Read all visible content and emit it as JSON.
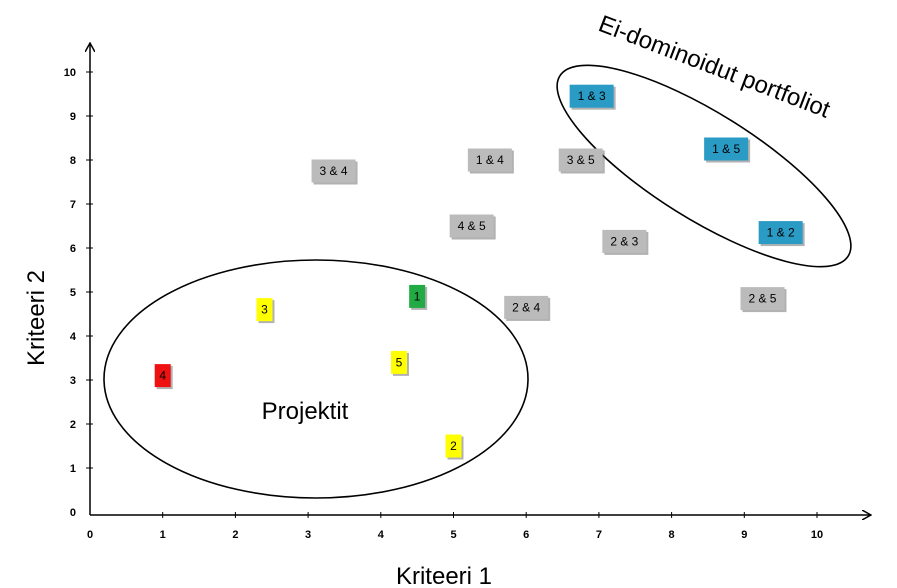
{
  "chart_data": {
    "type": "scatter",
    "xlabel": "Kriteeri 1",
    "ylabel": "Kriteeri 2",
    "xlim": [
      0,
      10
    ],
    "ylim": [
      0,
      10
    ],
    "x_ticks": [
      "0",
      "1",
      "2",
      "3",
      "4",
      "5",
      "6",
      "7",
      "8",
      "9",
      "10"
    ],
    "y_ticks": [
      "0",
      "1",
      "2",
      "3",
      "4",
      "5",
      "6",
      "7",
      "8",
      "9",
      "10"
    ],
    "grid": false,
    "points": [
      {
        "label": "4",
        "x": 1.0,
        "y": 3.1,
        "color": "#ee1111"
      },
      {
        "label": "3",
        "x": 2.4,
        "y": 4.6,
        "color": "#ffff00"
      },
      {
        "label": "5",
        "x": 4.25,
        "y": 3.4,
        "color": "#ffff00"
      },
      {
        "label": "2",
        "x": 5.0,
        "y": 1.5,
        "color": "#ffff00"
      },
      {
        "label": "1",
        "x": 4.5,
        "y": 4.9,
        "color": "#22aa44"
      },
      {
        "label": "2 & 4",
        "x": 6.0,
        "y": 4.65,
        "color": "#bbbbbb"
      },
      {
        "label": "3 & 4",
        "x": 3.35,
        "y": 7.75,
        "color": "#bbbbbb"
      },
      {
        "label": "4 & 5",
        "x": 5.25,
        "y": 6.5,
        "color": "#bbbbbb"
      },
      {
        "label": "1 & 4",
        "x": 5.5,
        "y": 8.0,
        "color": "#bbbbbb"
      },
      {
        "label": "3 & 5",
        "x": 6.75,
        "y": 8.0,
        "color": "#bbbbbb"
      },
      {
        "label": "2 & 3",
        "x": 7.35,
        "y": 6.15,
        "color": "#bbbbbb"
      },
      {
        "label": "2 & 5",
        "x": 9.25,
        "y": 4.85,
        "color": "#bbbbbb"
      },
      {
        "label": "1 & 3",
        "x": 6.9,
        "y": 9.45,
        "color": "#2a9bc4"
      },
      {
        "label": "1 & 5",
        "x": 8.75,
        "y": 8.25,
        "color": "#2a9bc4"
      },
      {
        "label": "1 & 2",
        "x": 9.5,
        "y": 6.35,
        "color": "#2a9bc4"
      }
    ],
    "annotations": [
      {
        "text": "Projektit"
      },
      {
        "text": "Ei-dominoidut portfoliot"
      }
    ]
  }
}
